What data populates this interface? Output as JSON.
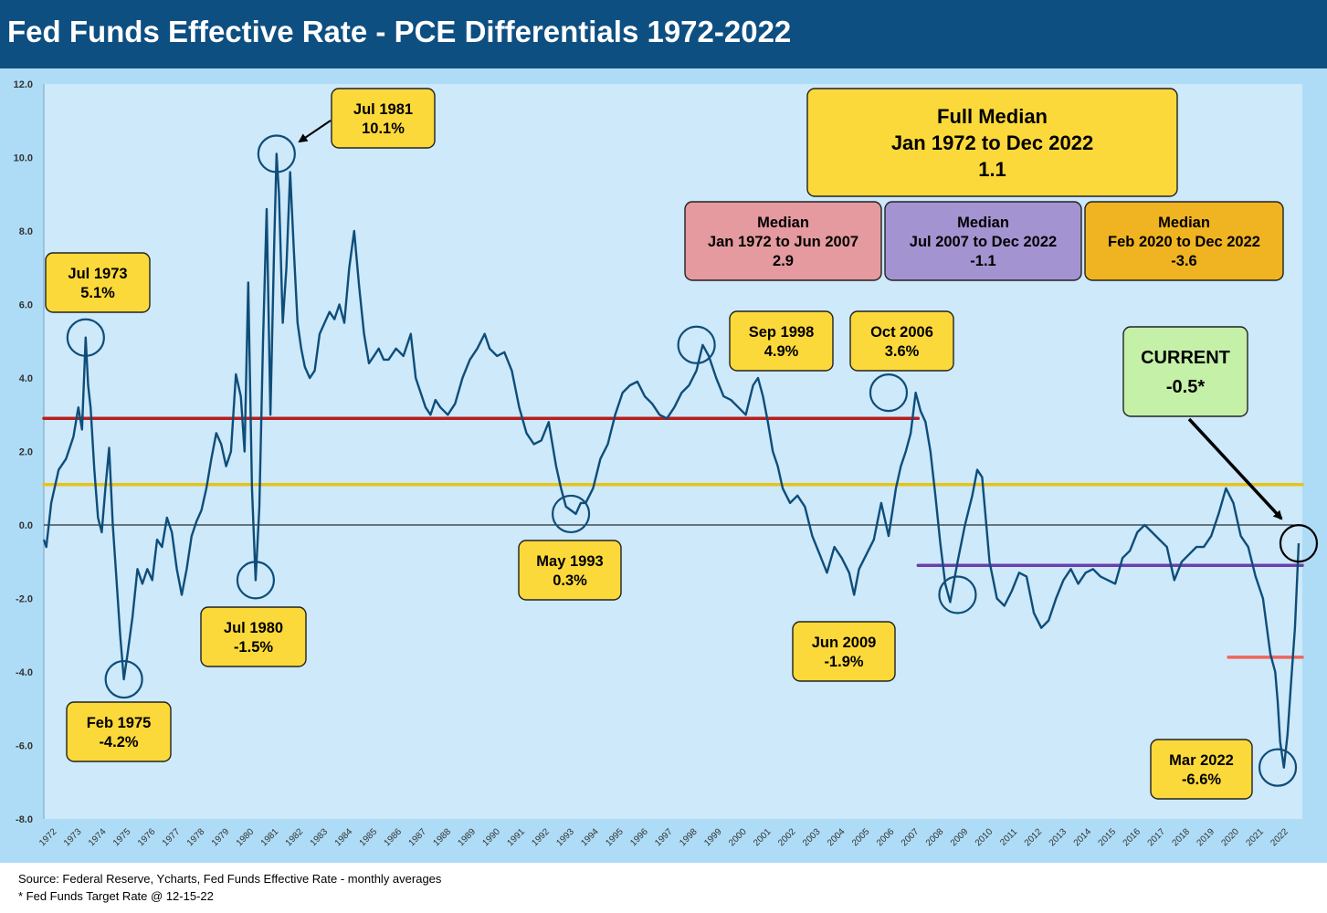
{
  "header": {
    "title": "Fed Funds Effective Rate - PCE Differentials 1972-2022"
  },
  "footer": {
    "source": "Source: Federal Reserve, Ycharts, Fed Funds Effective Rate - monthly averages",
    "note": "* Fed Funds Target Rate @ 12-15-22"
  },
  "colors": {
    "header_bg": "#0e4f82",
    "plot_bg": "#cde9fa",
    "frame_bg": "#aedcf6",
    "line": "#0f4d79",
    "median_full": "#e6c21a",
    "median_1972_2007": "#b81e1e",
    "median_2007_2022": "#6a3fae",
    "median_2020_2022": "#f0645a",
    "yellow_box": "#fcd93a",
    "pink_box": "#e49a9e",
    "purple_box": "#a493d1",
    "orange_box": "#f0b422",
    "green_box": "#c4f0a8"
  },
  "chart_data": {
    "type": "line",
    "title": "Fed Funds Effective Rate - PCE Differentials 1972-2022",
    "xlabel": "",
    "ylabel": "",
    "ylim": [
      -8,
      12
    ],
    "xlim": [
      1972,
      2023.1
    ],
    "y_ticks": [
      "12.0",
      "10.0",
      "8.0",
      "6.0",
      "4.0",
      "2.0",
      "0.0",
      "-2.0",
      "-4.0",
      "-6.0",
      "-8.0"
    ],
    "x_ticks": [
      "1972",
      "1973",
      "1974",
      "1975",
      "1976",
      "1977",
      "1978",
      "1979",
      "1980",
      "1981",
      "1982",
      "1983",
      "1984",
      "1985",
      "1986",
      "1987",
      "1988",
      "1989",
      "1990",
      "1991",
      "1992",
      "1993",
      "1994",
      "1995",
      "1996",
      "1997",
      "1998",
      "1999",
      "2000",
      "2001",
      "2002",
      "2003",
      "2004",
      "2005",
      "2006",
      "2007",
      "2008",
      "2009",
      "2010",
      "2011",
      "2012",
      "2013",
      "2014",
      "2015",
      "2016",
      "2017",
      "2018",
      "2019",
      "2020",
      "2021",
      "2022"
    ],
    "grid": false,
    "zero_line": true,
    "series": [
      {
        "x": [
          1972.0,
          1972.1,
          1972.3,
          1972.6,
          1972.9,
          1973.2,
          1973.4,
          1973.55,
          1973.7,
          1973.8,
          1973.9,
          1974.05,
          1974.2,
          1974.35,
          1974.5,
          1974.65,
          1974.8,
          1974.95,
          1975.1,
          1975.25,
          1975.4,
          1975.6,
          1975.8,
          1976.0,
          1976.2,
          1976.4,
          1976.6,
          1976.8,
          1977.0,
          1977.2,
          1977.4,
          1977.6,
          1977.8,
          1978.0,
          1978.2,
          1978.4,
          1978.6,
          1978.8,
          1979.0,
          1979.2,
          1979.4,
          1979.6,
          1979.8,
          1980.0,
          1980.15,
          1980.3,
          1980.45,
          1980.6,
          1980.75,
          1980.9,
          1981.05,
          1981.2,
          1981.35,
          1981.45,
          1981.55,
          1981.7,
          1981.85,
          1982.0,
          1982.15,
          1982.3,
          1982.45,
          1982.6,
          1982.8,
          1983.0,
          1983.2,
          1983.4,
          1983.6,
          1983.8,
          1984.0,
          1984.2,
          1984.4,
          1984.6,
          1984.8,
          1985.0,
          1985.2,
          1985.4,
          1985.6,
          1985.8,
          1986.0,
          1986.3,
          1986.6,
          1986.9,
          1987.1,
          1987.3,
          1987.5,
          1987.7,
          1987.9,
          1988.1,
          1988.4,
          1988.7,
          1989.0,
          1989.3,
          1989.6,
          1989.9,
          1990.1,
          1990.4,
          1990.7,
          1991.0,
          1991.3,
          1991.6,
          1991.9,
          1992.2,
          1992.5,
          1992.8,
          1993.0,
          1993.2,
          1993.4,
          1993.6,
          1993.8,
          1994.0,
          1994.3,
          1994.6,
          1994.9,
          1995.2,
          1995.5,
          1995.8,
          1996.1,
          1996.4,
          1996.7,
          1997.0,
          1997.3,
          1997.6,
          1997.9,
          1998.2,
          1998.5,
          1998.75,
          1999.0,
          1999.3,
          1999.6,
          1999.9,
          2000.2,
          2000.5,
          2000.8,
          2001.0,
          2001.2,
          2001.4,
          2001.6,
          2001.8,
          2002.0,
          2002.3,
          2002.6,
          2002.9,
          2003.2,
          2003.5,
          2003.8,
          2004.1,
          2004.4,
          2004.7,
          2004.9,
          2005.1,
          2005.4,
          2005.7,
          2006.0,
          2006.3,
          2006.6,
          2006.8,
          2007.0,
          2007.2,
          2007.4,
          2007.6,
          2007.8,
          2008.0,
          2008.2,
          2008.4,
          2008.6,
          2008.8,
          2009.1,
          2009.4,
          2009.7,
          2009.9,
          2010.1,
          2010.4,
          2010.7,
          2011.0,
          2011.3,
          2011.6,
          2011.9,
          2012.2,
          2012.5,
          2012.8,
          2013.1,
          2013.4,
          2013.7,
          2014.0,
          2014.3,
          2014.6,
          2014.9,
          2015.2,
          2015.5,
          2015.8,
          2016.1,
          2016.4,
          2016.7,
          2017.0,
          2017.3,
          2017.6,
          2017.9,
          2018.2,
          2018.5,
          2018.8,
          2019.1,
          2019.4,
          2019.7,
          2020.0,
          2020.3,
          2020.6,
          2020.9,
          2021.2,
          2021.5,
          2021.8,
          2022.0,
          2022.1,
          2022.2,
          2022.35,
          2022.5,
          2022.65,
          2022.8,
          2022.95
        ],
        "y": [
          -0.4,
          -0.6,
          0.6,
          1.5,
          1.8,
          2.4,
          3.2,
          2.6,
          5.1,
          3.8,
          3.2,
          1.5,
          0.2,
          -0.2,
          1.0,
          2.1,
          0.0,
          -1.5,
          -3.0,
          -4.2,
          -3.5,
          -2.5,
          -1.2,
          -1.6,
          -1.2,
          -1.5,
          -0.4,
          -0.6,
          0.2,
          -0.2,
          -1.2,
          -1.9,
          -1.2,
          -0.3,
          0.1,
          0.4,
          1.0,
          1.8,
          2.5,
          2.2,
          1.6,
          2.0,
          4.1,
          3.5,
          2.0,
          6.6,
          1.0,
          -1.5,
          0.5,
          5.0,
          8.6,
          3.0,
          7.5,
          10.1,
          9.0,
          5.5,
          7.0,
          9.6,
          7.5,
          5.5,
          4.8,
          4.3,
          4.0,
          4.2,
          5.2,
          5.5,
          5.8,
          5.6,
          6.0,
          5.5,
          7.0,
          8.0,
          6.5,
          5.2,
          4.4,
          4.6,
          4.8,
          4.5,
          4.5,
          4.8,
          4.6,
          5.2,
          4.0,
          3.6,
          3.2,
          3.0,
          3.4,
          3.2,
          3.0,
          3.3,
          4.0,
          4.5,
          4.8,
          5.2,
          4.8,
          4.6,
          4.7,
          4.2,
          3.2,
          2.5,
          2.2,
          2.3,
          2.8,
          1.6,
          1.0,
          0.5,
          0.4,
          0.3,
          0.6,
          0.6,
          1.0,
          1.8,
          2.2,
          3.0,
          3.6,
          3.8,
          3.9,
          3.5,
          3.3,
          3.0,
          2.9,
          3.2,
          3.6,
          3.8,
          4.2,
          4.9,
          4.6,
          4.0,
          3.5,
          3.4,
          3.2,
          3.0,
          3.8,
          4.0,
          3.5,
          2.8,
          2.0,
          1.6,
          1.0,
          0.6,
          0.8,
          0.5,
          -0.3,
          -0.8,
          -1.3,
          -0.6,
          -0.9,
          -1.3,
          -1.9,
          -1.2,
          -0.8,
          -0.4,
          0.6,
          -0.3,
          1.0,
          1.6,
          2.0,
          2.5,
          3.6,
          3.1,
          2.8,
          2.0,
          0.8,
          -0.5,
          -1.6,
          -2.1,
          -1.0,
          0.0,
          0.8,
          1.5,
          1.3,
          -1.0,
          -2.0,
          -2.2,
          -1.8,
          -1.3,
          -1.4,
          -2.4,
          -2.8,
          -2.6,
          -2.0,
          -1.5,
          -1.2,
          -1.6,
          -1.3,
          -1.2,
          -1.4,
          -1.5,
          -1.6,
          -0.9,
          -0.7,
          -0.2,
          0.0,
          -0.2,
          -0.4,
          -0.6,
          -1.5,
          -1.0,
          -0.8,
          -0.6,
          -0.6,
          -0.3,
          0.3,
          1.0,
          0.6,
          -0.3,
          -0.6,
          -1.4,
          -2.0,
          -3.5,
          -4.0,
          -4.8,
          -5.9,
          -6.6,
          -5.7,
          -4.2,
          -2.8,
          -0.5
        ]
      }
    ],
    "reference_lines": [
      {
        "label": "Full Median",
        "value": 1.1,
        "from": 1972.0,
        "to": 2023.1
      },
      {
        "label": "Median Jan 1972 to Jun 2007",
        "value": 2.9,
        "from": 1972.0,
        "to": 2007.5
      },
      {
        "label": "Median Jul 2007 to Dec 2022",
        "value": -1.1,
        "from": 2007.5,
        "to": 2023.1
      },
      {
        "label": "Median Feb 2020 to Dec 2022",
        "value": -3.6,
        "from": 2020.1,
        "to": 2023.1
      }
    ],
    "annotations": {
      "full_median": {
        "l1": "Full Median",
        "l2": "Jan 1972 to Dec 2022",
        "l3": "1.1"
      },
      "median_a": {
        "l1": "Median",
        "l2": "Jan 1972 to Jun 2007",
        "l3": "2.9"
      },
      "median_b": {
        "l1": "Median",
        "l2": "Jul 2007 to Dec 2022",
        "l3": "-1.1"
      },
      "median_c": {
        "l1": "Median",
        "l2": "Feb 2020 to Dec 2022",
        "l3": "-3.6"
      },
      "current": {
        "l1": "CURRENT",
        "l2": "-0.5*"
      },
      "jul1973": {
        "l1": "Jul 1973",
        "l2": "5.1%"
      },
      "feb1975": {
        "l1": "Feb 1975",
        "l2": "-4.2%"
      },
      "jul1980": {
        "l1": "Jul 1980",
        "l2": "-1.5%"
      },
      "jul1981": {
        "l1": "Jul 1981",
        "l2": "10.1%"
      },
      "may1993": {
        "l1": "May 1993",
        "l2": "0.3%"
      },
      "sep1998": {
        "l1": "Sep 1998",
        "l2": "4.9%"
      },
      "oct2006": {
        "l1": "Oct 2006",
        "l2": "3.6%"
      },
      "jun2009": {
        "l1": "Jun 2009",
        "l2": "-1.9%"
      },
      "mar2022": {
        "l1": "Mar 2022",
        "l2": "-6.6%"
      }
    }
  }
}
